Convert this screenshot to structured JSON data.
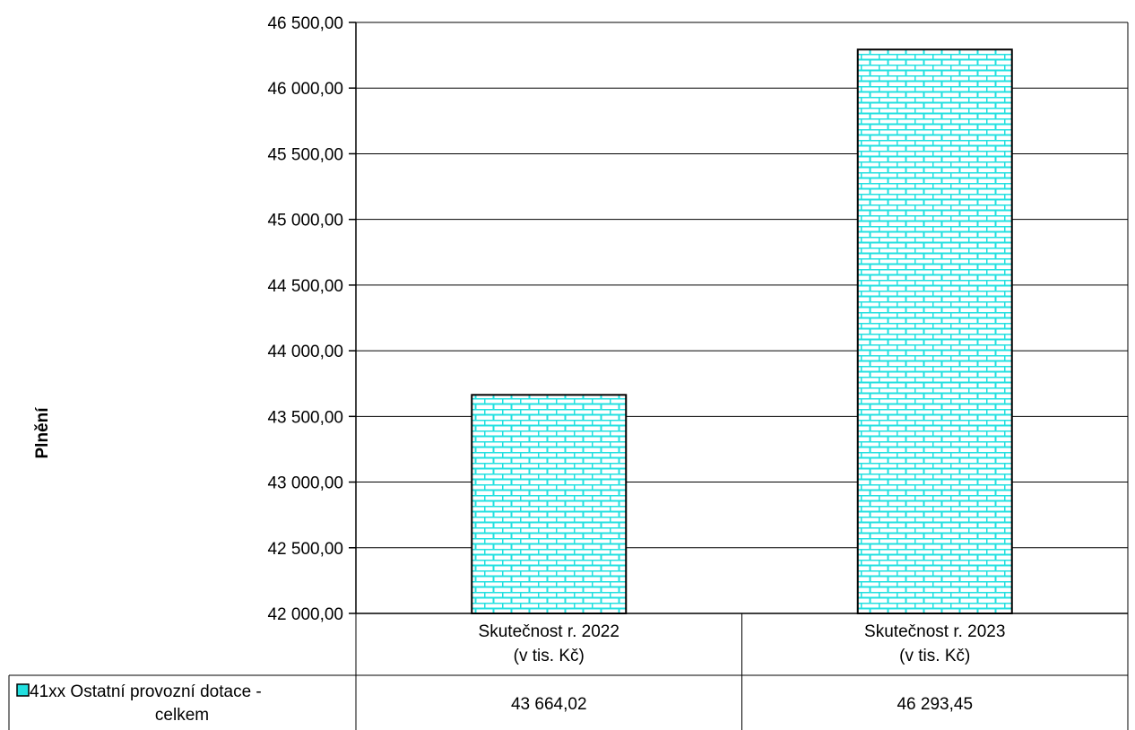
{
  "chart_data": {
    "type": "bar",
    "ylabel": "Plnění",
    "ylim": [
      42000,
      46500
    ],
    "y_ticks": [
      42000,
      42500,
      43000,
      43500,
      44000,
      44500,
      45000,
      45500,
      46000,
      46500
    ],
    "y_tick_labels": [
      "42 000,00",
      "42 500,00",
      "43 000,00",
      "43 500,00",
      "44 000,00",
      "44 500,00",
      "45 000,00",
      "45 500,00",
      "46 000,00",
      "46 500,00"
    ],
    "grid": true,
    "categories": [
      [
        "Skutečnost        r. 2022",
        "(v tis. Kč)"
      ],
      [
        "Skutečnost        r. 2023",
        "(v tis. Kč)"
      ]
    ],
    "series": [
      {
        "name": [
          "41xx Ostatní provozní dotace -",
          "celkem"
        ],
        "values": [
          43664.02,
          46293.45
        ],
        "value_labels": [
          "43 664,02",
          "46 293,45"
        ],
        "color": "#22e0e0",
        "pattern": "brick"
      }
    ],
    "legend_placement": "data-table"
  }
}
